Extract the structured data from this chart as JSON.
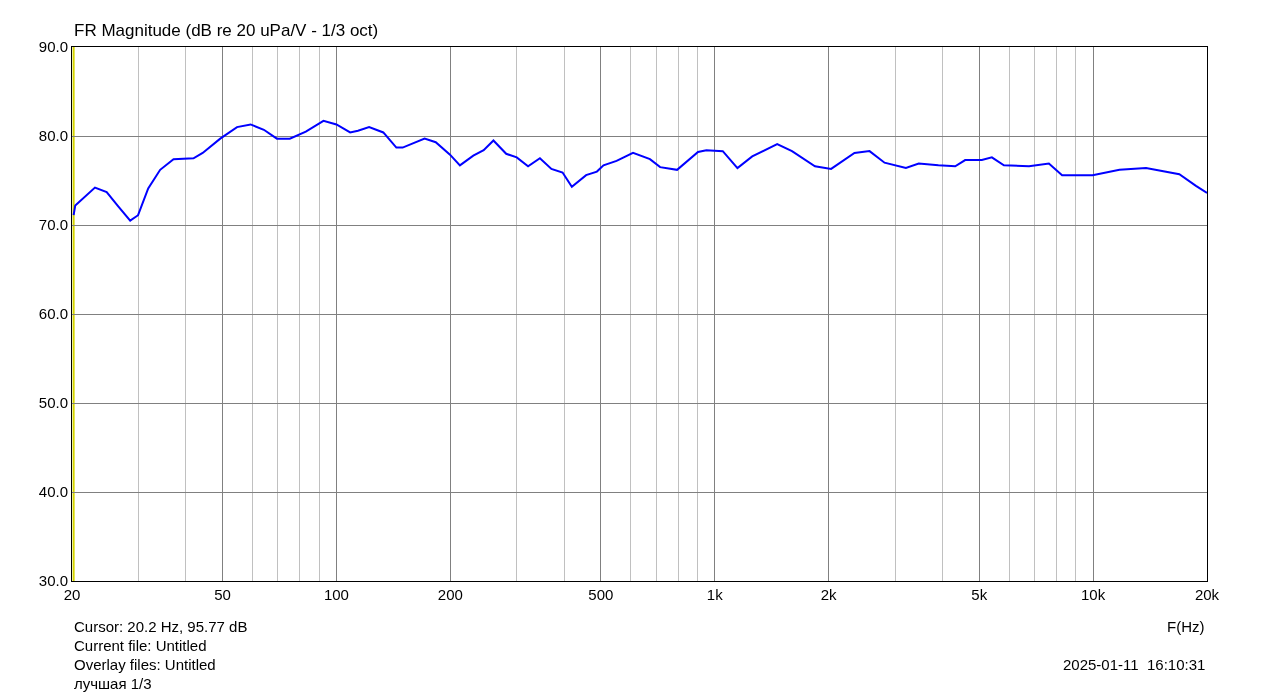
{
  "chart_data": {
    "type": "line",
    "title": "FR Magnitude (dB re 20 uPa/V - 1/3 oct)",
    "xlabel": "F(Hz)",
    "log": "x",
    "grid": true,
    "marker": "none",
    "line_style": "solid",
    "xlim": [
      20,
      20000
    ],
    "xticks": [
      20,
      50,
      100,
      200,
      500,
      {
        "value": 1000,
        "label": "1k"
      },
      {
        "value": 2000,
        "label": "2k"
      },
      {
        "value": 5000,
        "label": "5k"
      },
      {
        "value": 10000,
        "label": "10k"
      },
      {
        "value": 20000,
        "label": "20k"
      }
    ],
    "ylim": [
      30,
      90
    ],
    "yticks": [
      {
        "value": 30,
        "label": "30.0"
      },
      {
        "value": 40,
        "label": "40.0"
      },
      {
        "value": 50,
        "label": "50.0"
      },
      {
        "value": 60,
        "label": "60.0"
      },
      {
        "value": 70,
        "label": "70.0"
      },
      {
        "value": 80,
        "label": "80.0"
      },
      {
        "value": 90,
        "label": "90.0"
      }
    ],
    "ref_lines": [
      {
        "axis": "x",
        "value": 20.2,
        "color": "#d4d400"
      }
    ],
    "series": [
      {
        "color": "#0000ff",
        "x": [
          20.2,
          20.4,
          23,
          24.7,
          26.5,
          28.5,
          29.9,
          31.8,
          34.2,
          37.1,
          41.9,
          44.3,
          49.3,
          54.6,
          59.3,
          64.3,
          69.6,
          75.3,
          83,
          92.4,
          100,
          108.7,
          114,
          122,
          133,
          144,
          149.6,
          171,
          183,
          199.6,
          212,
          230,
          245,
          260,
          281,
          299.6,
          321,
          345,
          370,
          396,
          419,
          457,
          488,
          508,
          550,
          608,
          674,
          717,
          795,
          903,
          950,
          1050,
          1148,
          1256,
          1462,
          1600,
          1840,
          2030,
          2340,
          2565,
          2810,
          3200,
          3460,
          3900,
          4320,
          4590,
          5080,
          5400,
          5810,
          6770,
          7640,
          8280,
          9970,
          11740,
          13800,
          16900,
          18700,
          20000
        ],
        "values": [
          71.1,
          72.2,
          74.2,
          73.7,
          72.1,
          70.5,
          71.1,
          74.1,
          76.2,
          77.4,
          77.5,
          78.1,
          79.7,
          81.0,
          81.3,
          80.7,
          79.7,
          79.7,
          80.5,
          81.7,
          81.3,
          80.4,
          80.6,
          81.0,
          80.4,
          78.7,
          78.7,
          79.7,
          79.3,
          77.9,
          76.7,
          77.8,
          78.4,
          79.5,
          78.0,
          77.6,
          76.6,
          77.5,
          76.3,
          75.9,
          74.3,
          75.6,
          76.0,
          76.7,
          77.2,
          78.1,
          77.4,
          76.5,
          76.2,
          78.2,
          78.4,
          78.3,
          76.4,
          77.7,
          79.1,
          78.3,
          76.6,
          76.3,
          78.1,
          78.3,
          77.0,
          76.4,
          76.9,
          76.7,
          76.6,
          77.3,
          77.3,
          77.6,
          76.7,
          76.6,
          76.9,
          75.6,
          75.6,
          76.2,
          76.4,
          75.7,
          74.4,
          73.6
        ]
      }
    ],
    "annotations": [
      "Cursor: 20.2 Hz, 95.77 dB",
      "Current file: Untitled",
      "Overlay files: Untitled",
      "лучшая 1/3",
      "2025-01-11  16:10:31"
    ]
  }
}
